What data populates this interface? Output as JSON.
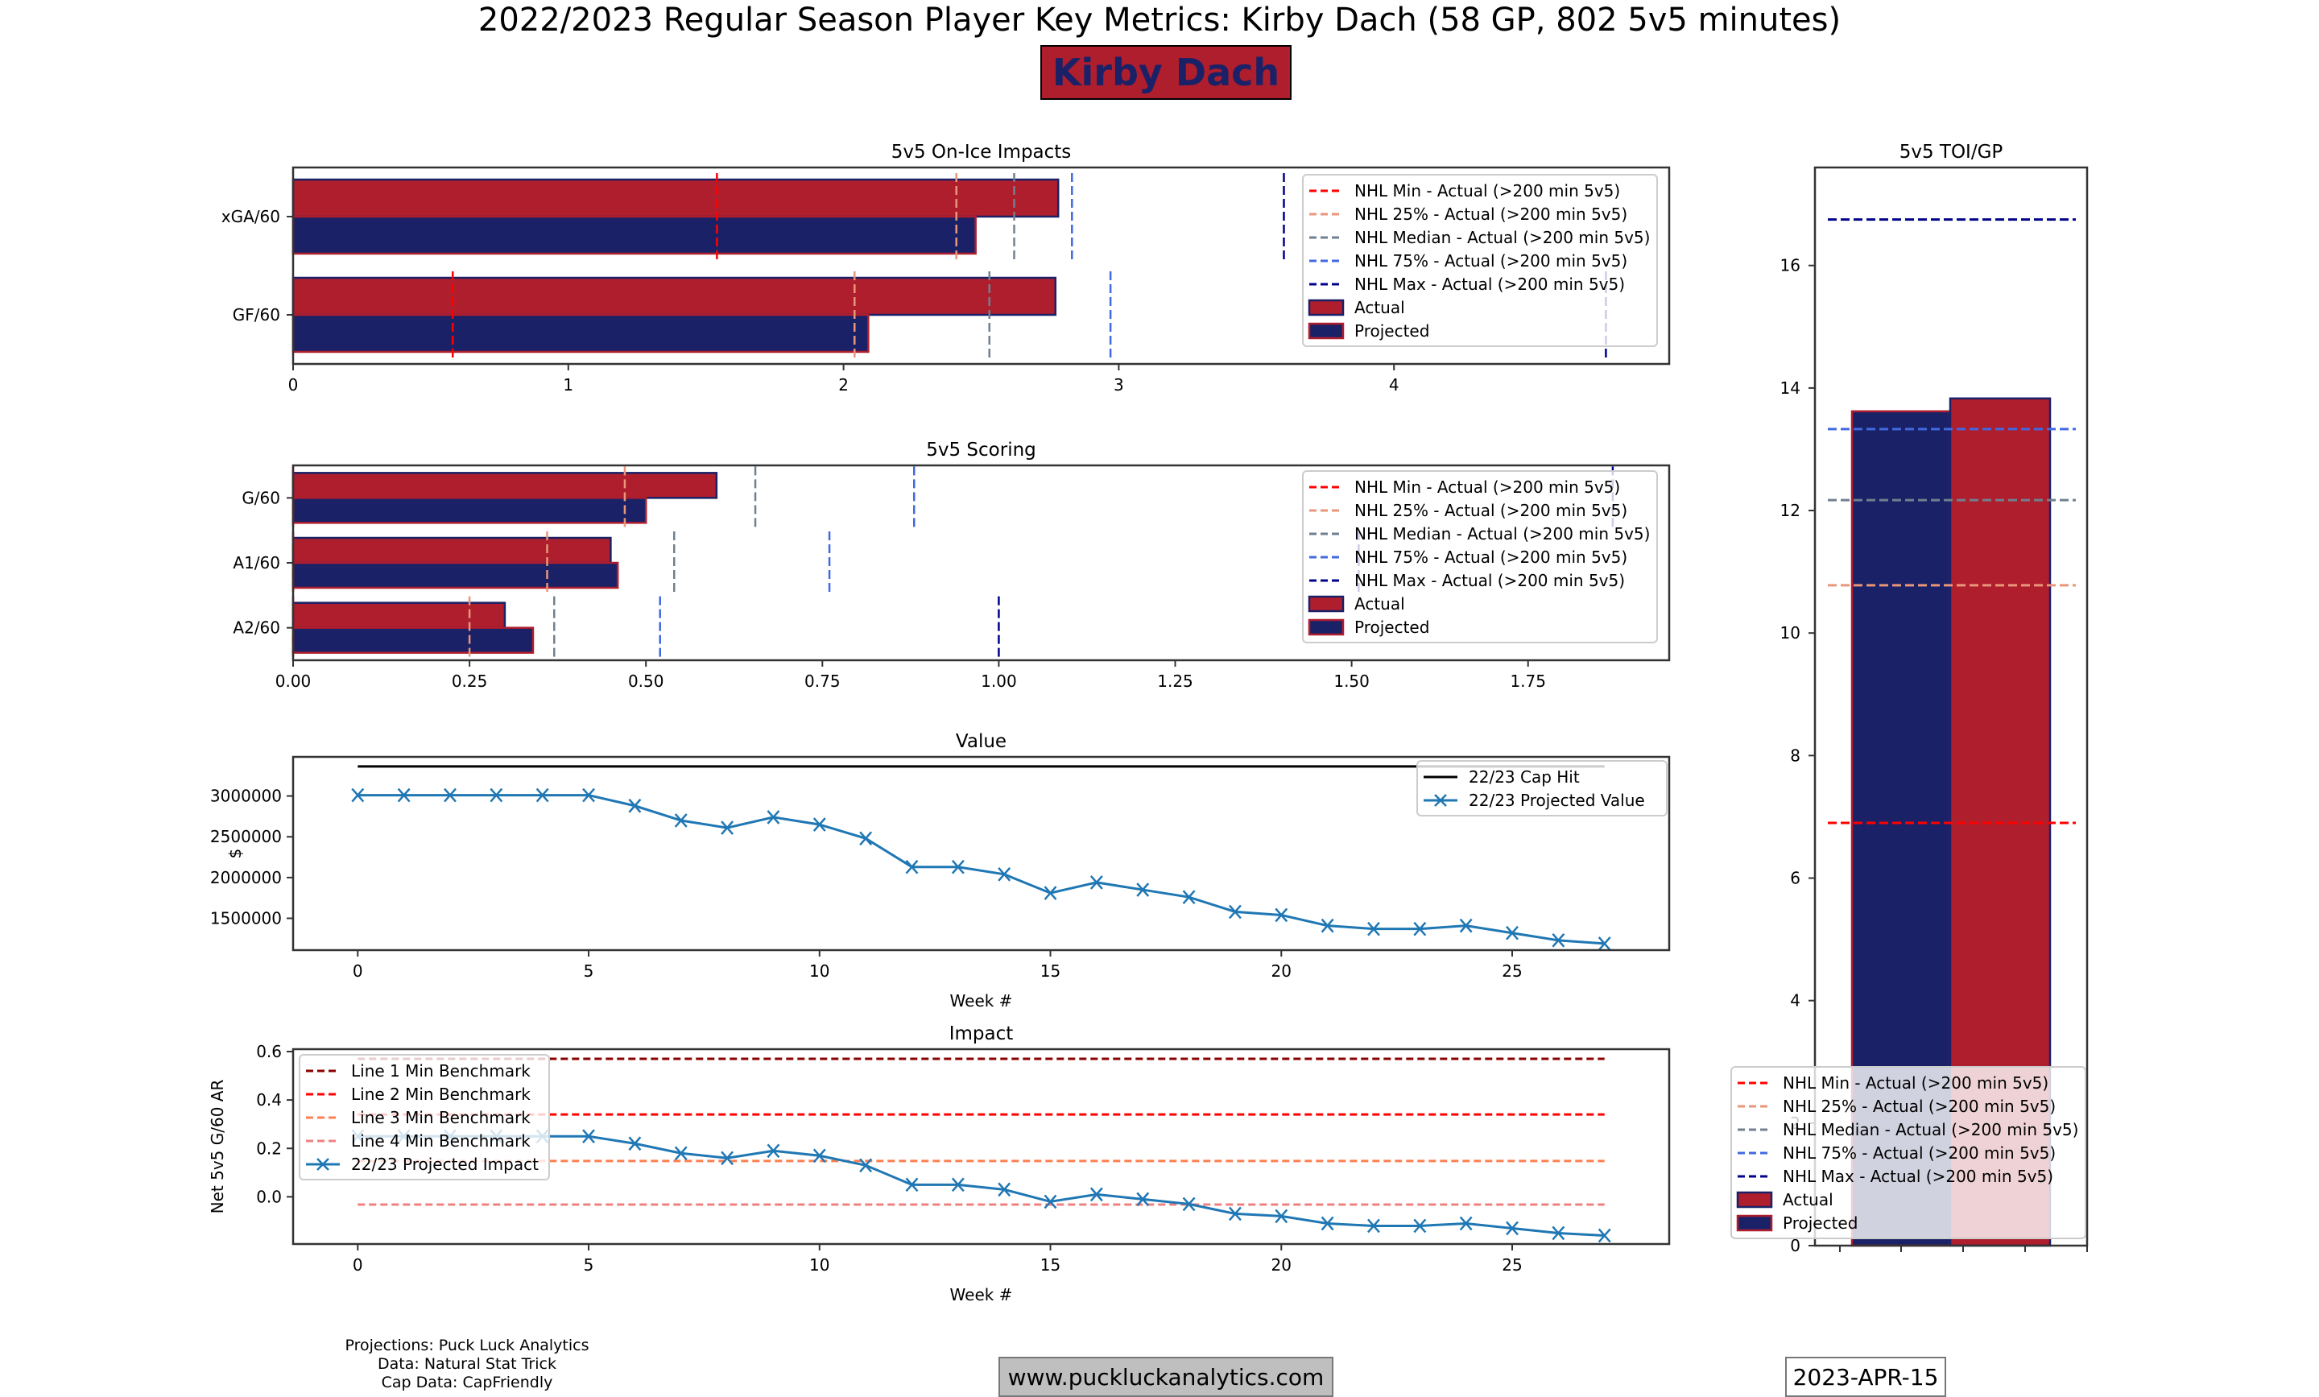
{
  "header": {
    "title": "2022/2023 Regular Season Player Key Metrics: Kirby Dach (58 GP, 802 5v5 minutes)",
    "player_badge": "Kirby Dach"
  },
  "colors": {
    "actual": "#af1e2d",
    "projected": "#1b2167",
    "nhl_min": "#ff0000",
    "nhl_25": "#e9967a",
    "nhl_median": "#708090",
    "nhl_75": "#4169e1",
    "nhl_max": "#00008b",
    "line_blue": "#1f77b4",
    "line1": "#8b0000",
    "line2": "#ff0000",
    "line3": "#ff7f50",
    "line4": "#f08080"
  },
  "benchmark_legend": [
    "NHL Min - Actual (>200 min 5v5)",
    "NHL 25% - Actual (>200 min 5v5)",
    "NHL Median - Actual (>200 min 5v5)",
    "NHL 75% - Actual (>200 min 5v5)",
    "NHL Max - Actual (>200 min 5v5)",
    "Actual",
    "Projected"
  ],
  "chart_data": [
    {
      "id": "onice",
      "type": "bar",
      "orientation": "horizontal",
      "title": "5v5 On-Ice Impacts",
      "categories": [
        "xGA/60",
        "GF/60"
      ],
      "series": [
        {
          "name": "Actual",
          "values": [
            2.78,
            2.77
          ]
        },
        {
          "name": "Projected",
          "values": [
            2.48,
            2.09
          ]
        }
      ],
      "benchmarks": {
        "NHL Min": [
          1.54,
          0.58
        ],
        "NHL 25%": [
          2.41,
          2.04
        ],
        "NHL Median": [
          2.62,
          2.53
        ],
        "NHL 75%": [
          2.83,
          2.97
        ],
        "NHL Max": [
          3.6,
          4.77
        ]
      },
      "xlim": [
        0,
        5.0
      ],
      "xticks": [
        "0",
        "1",
        "2",
        "3",
        "4"
      ],
      "legend": "top-right"
    },
    {
      "id": "scoring",
      "type": "bar",
      "orientation": "horizontal",
      "title": "5v5 Scoring",
      "categories": [
        "G/60",
        "A1/60",
        "A2/60"
      ],
      "series": [
        {
          "name": "Actual",
          "values": [
            0.6,
            0.45,
            0.3
          ]
        },
        {
          "name": "Projected",
          "values": [
            0.5,
            0.46,
            0.34
          ]
        }
      ],
      "benchmarks": {
        "NHL Min": [
          0.0,
          0.0,
          0.0
        ],
        "NHL 25%": [
          0.47,
          0.36,
          0.25
        ],
        "NHL Median": [
          0.655,
          0.54,
          0.37
        ],
        "NHL 75%": [
          0.88,
          0.76,
          0.52
        ],
        "NHL Max": [
          1.87,
          1.51,
          1.0
        ]
      },
      "xlim": [
        0,
        1.95
      ],
      "xticks": [
        "0.00",
        "0.25",
        "0.50",
        "0.75",
        "1.00",
        "1.25",
        "1.50",
        "1.75"
      ],
      "legend": "top-right"
    },
    {
      "id": "value",
      "type": "line",
      "title": "Value",
      "xlabel": "Week #",
      "ylabel": "$",
      "x": [
        0,
        1,
        2,
        3,
        4,
        5,
        6,
        7,
        8,
        9,
        10,
        11,
        12,
        13,
        14,
        15,
        16,
        17,
        18,
        19,
        20,
        21,
        22,
        23,
        24,
        25,
        26,
        27
      ],
      "series": [
        {
          "name": "22/23 Cap Hit",
          "values": [
            3362500,
            3362500,
            3362500,
            3362500,
            3362500,
            3362500,
            3362500,
            3362500,
            3362500,
            3362500,
            3362500,
            3362500,
            3362500,
            3362500,
            3362500,
            3362500,
            3362500,
            3362500,
            3362500,
            3362500,
            3362500,
            3362500,
            3362500,
            3362500,
            3362500,
            3362500,
            3362500,
            3362500
          ]
        },
        {
          "name": "22/23 Projected Value",
          "values": [
            3010000,
            3010000,
            3010000,
            3010000,
            3010000,
            3010000,
            2880000,
            2700000,
            2610000,
            2740000,
            2650000,
            2480000,
            2130000,
            2130000,
            2040000,
            1810000,
            1940000,
            1850000,
            1760000,
            1580000,
            1540000,
            1410000,
            1370000,
            1370000,
            1410000,
            1320000,
            1230000,
            1190000
          ]
        }
      ],
      "xlim": [
        -1.4,
        28.4
      ],
      "ylim": [
        1110000,
        3480000
      ],
      "yticks": [
        "1500000",
        "2000000",
        "2500000",
        "3000000"
      ],
      "xticks": [
        "0",
        "5",
        "10",
        "15",
        "20",
        "25"
      ],
      "legend": "top-right"
    },
    {
      "id": "impact",
      "type": "line",
      "title": "Impact",
      "xlabel": "Week #",
      "ylabel": "Net 5v5 G/60 AR",
      "x": [
        0,
        1,
        2,
        3,
        4,
        5,
        6,
        7,
        8,
        9,
        10,
        11,
        12,
        13,
        14,
        15,
        16,
        17,
        18,
        19,
        20,
        21,
        22,
        23,
        24,
        25,
        26,
        27
      ],
      "series": [
        {
          "name": "Line 1 Min Benchmark",
          "constant": 0.57
        },
        {
          "name": "Line 2 Min Benchmark",
          "constant": 0.34
        },
        {
          "name": "Line 3 Min Benchmark",
          "constant": 0.148
        },
        {
          "name": "Line 4 Min Benchmark",
          "constant": -0.032
        },
        {
          "name": "22/23 Projected Impact",
          "values": [
            0.25,
            0.25,
            0.25,
            0.25,
            0.25,
            0.25,
            0.22,
            0.18,
            0.16,
            0.19,
            0.17,
            0.13,
            0.05,
            0.05,
            0.03,
            -0.02,
            0.01,
            -0.01,
            -0.03,
            -0.07,
            -0.08,
            -0.11,
            -0.12,
            -0.12,
            -0.11,
            -0.13,
            -0.15,
            -0.16
          ]
        }
      ],
      "xlim": [
        -1.4,
        28.4
      ],
      "ylim": [
        -0.195,
        0.61
      ],
      "yticks": [
        "0.0",
        "0.2",
        "0.4",
        "0.6"
      ],
      "xticks": [
        "0",
        "5",
        "10",
        "15",
        "20",
        "25"
      ],
      "legend": "top-left"
    },
    {
      "id": "toi",
      "type": "bar",
      "title": "5v5 TOI/GP",
      "categories": [
        "Projected",
        "Actual"
      ],
      "values": [
        13.62,
        13.83
      ],
      "benchmarks": {
        "NHL Min": 6.9,
        "NHL 25%": 10.78,
        "NHL Median": 12.17,
        "NHL 75%": 13.33,
        "NHL Max": 16.75
      },
      "ylim": [
        0,
        17.6
      ],
      "yticks": [
        "0",
        "2",
        "4",
        "6",
        "8",
        "10",
        "12",
        "14",
        "16"
      ],
      "legend": "bottom-right"
    }
  ],
  "footer": {
    "credits": [
      "Projections: Puck Luck Analytics",
      "Data: Natural Stat Trick",
      "Cap Data: CapFriendly"
    ],
    "website": "www.puckluckanalytics.com",
    "date": "2023-APR-15"
  }
}
